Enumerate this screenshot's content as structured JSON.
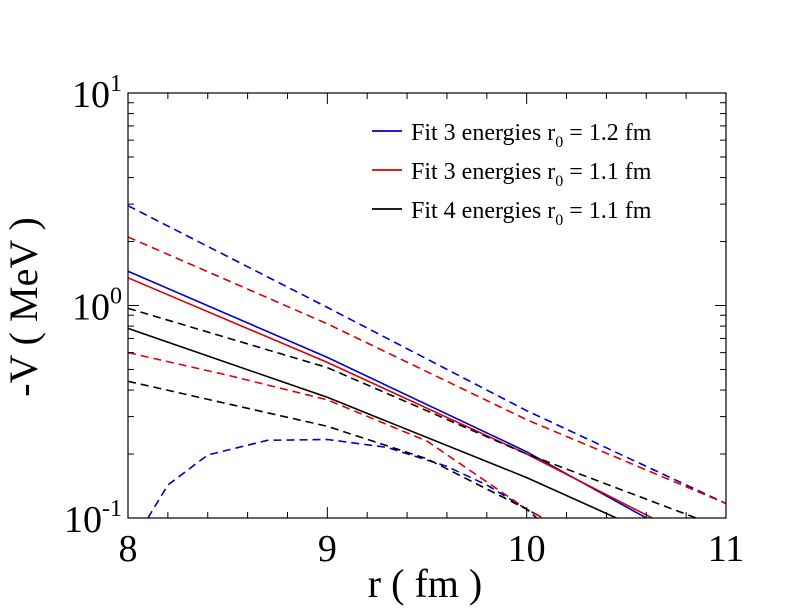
{
  "chart_data": {
    "type": "line",
    "title": "",
    "xlabel": "r ( fm )",
    "ylabel": "-V ( MeV )",
    "xlim": [
      8,
      11
    ],
    "ylim": [
      0.1,
      10
    ],
    "yscale": "log",
    "grid": false,
    "legend_position": "top-right",
    "x_ticks": [
      {
        "value": 8,
        "label": "8"
      },
      {
        "value": 9,
        "label": "9"
      },
      {
        "value": 10,
        "label": "10"
      },
      {
        "value": 11,
        "label": "11"
      }
    ],
    "y_ticks": [
      {
        "value": 0.1,
        "base": "10",
        "exp": "-1"
      },
      {
        "value": 1,
        "base": "10",
        "exp": "0"
      },
      {
        "value": 10,
        "base": "10",
        "exp": "1"
      }
    ],
    "legend": [
      {
        "prefix": "Fit 3 energies r",
        "sub": "0",
        "suffix": " = 1.2 fm",
        "color": "#0000cc"
      },
      {
        "prefix": "Fit 3 energies r",
        "sub": "0",
        "suffix": " = 1.1 fm",
        "color": "#dd0000"
      },
      {
        "prefix": "Fit 4 energies r",
        "sub": "0",
        "suffix": " = 1.1 fm",
        "color": "#000000"
      }
    ],
    "series": [
      {
        "name": "Fit 3 energies r0 = 1.2 fm",
        "style": "solid",
        "color": "#0000cc",
        "x": [
          8.0,
          9.0,
          10.0,
          10.6
        ],
        "y": [
          1.45,
          0.57,
          0.205,
          0.1
        ]
      },
      {
        "name": "Fit 3 energies r0 = 1.2 fm (upper bound)",
        "style": "dashed",
        "color": "#0000cc",
        "x": [
          8.0,
          9.0,
          10.0,
          11.0
        ],
        "y": [
          2.95,
          0.98,
          0.32,
          0.117
        ]
      },
      {
        "name": "Fit 3 energies r0 = 1.2 fm (lower bound)",
        "style": "dashed",
        "color": "#0000cc",
        "x": [
          8.1,
          8.2,
          8.4,
          8.7,
          9.0,
          9.3,
          9.6,
          9.8,
          10.0,
          10.1
        ],
        "y": [
          0.1,
          0.143,
          0.198,
          0.232,
          0.234,
          0.215,
          0.175,
          0.143,
          0.11,
          0.098
        ]
      },
      {
        "name": "Fit 3 energies r0 = 1.1 fm",
        "style": "solid",
        "color": "#dd0000",
        "x": [
          8.0,
          9.0,
          10.0,
          10.63
        ],
        "y": [
          1.35,
          0.54,
          0.2,
          0.1
        ]
      },
      {
        "name": "Fit 3 energies r0 = 1.1 fm (upper bound)",
        "style": "dashed",
        "color": "#dd0000",
        "x": [
          8.0,
          9.0,
          10.0,
          11.0
        ],
        "y": [
          2.1,
          0.82,
          0.29,
          0.117
        ]
      },
      {
        "name": "Fit 3 energies r0 = 1.1 fm (lower bound)",
        "style": "dashed",
        "color": "#dd0000",
        "x": [
          8.0,
          8.5,
          9.0,
          9.5,
          10.0,
          10.1
        ],
        "y": [
          0.6,
          0.47,
          0.36,
          0.23,
          0.11,
          0.098
        ]
      },
      {
        "name": "Fit 4 energies r0 = 1.1 fm",
        "style": "solid",
        "color": "#000000",
        "x": [
          8.0,
          9.0,
          10.0,
          10.45
        ],
        "y": [
          0.78,
          0.37,
          0.155,
          0.1
        ]
      },
      {
        "name": "Fit 4 energies r0 = 1.1 fm (upper bound)",
        "style": "dashed",
        "color": "#000000",
        "x": [
          8.0,
          9.0,
          10.0,
          10.85
        ],
        "y": [
          0.97,
          0.51,
          0.2,
          0.1
        ]
      },
      {
        "name": "Fit 4 energies r0 = 1.1 fm (lower bound)",
        "style": "dashed",
        "color": "#000000",
        "x": [
          8.0,
          9.0,
          9.5,
          10.0,
          10.05
        ],
        "y": [
          0.44,
          0.27,
          0.19,
          0.11,
          0.1
        ]
      }
    ]
  }
}
